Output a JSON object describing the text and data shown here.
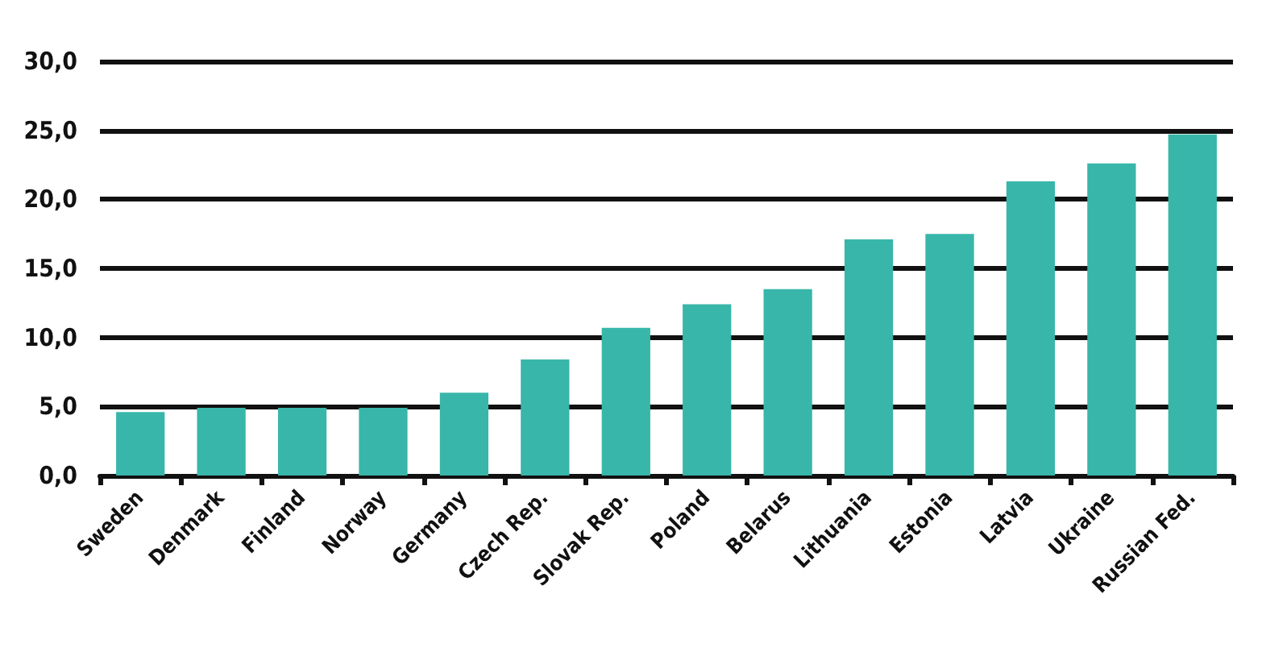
{
  "chart_data": {
    "type": "bar",
    "categories": [
      "Sweden",
      "Denmark",
      "Finland",
      "Norway",
      "Germany",
      "Czech Rep.",
      "Slovak Rep.",
      "Poland",
      "Belarus",
      "Lithuania",
      "Estonia",
      "Latvia",
      "Ukraine",
      "Russian Fed."
    ],
    "values": [
      4.6,
      4.9,
      4.9,
      4.9,
      6.0,
      8.4,
      10.7,
      12.4,
      13.5,
      17.1,
      17.5,
      21.3,
      22.6,
      24.7
    ],
    "color": "#38b6a9",
    "ylim": [
      0,
      30
    ],
    "yticks": [
      {
        "value": 0,
        "label": "0,0"
      },
      {
        "value": 5,
        "label": "5,0"
      },
      {
        "value": 10,
        "label": "10,0"
      },
      {
        "value": 15,
        "label": "15,0"
      },
      {
        "value": 20,
        "label": "20,0"
      },
      {
        "value": 25,
        "label": "25,0"
      },
      {
        "value": 30,
        "label": "30,0"
      }
    ],
    "grid": "y"
  }
}
